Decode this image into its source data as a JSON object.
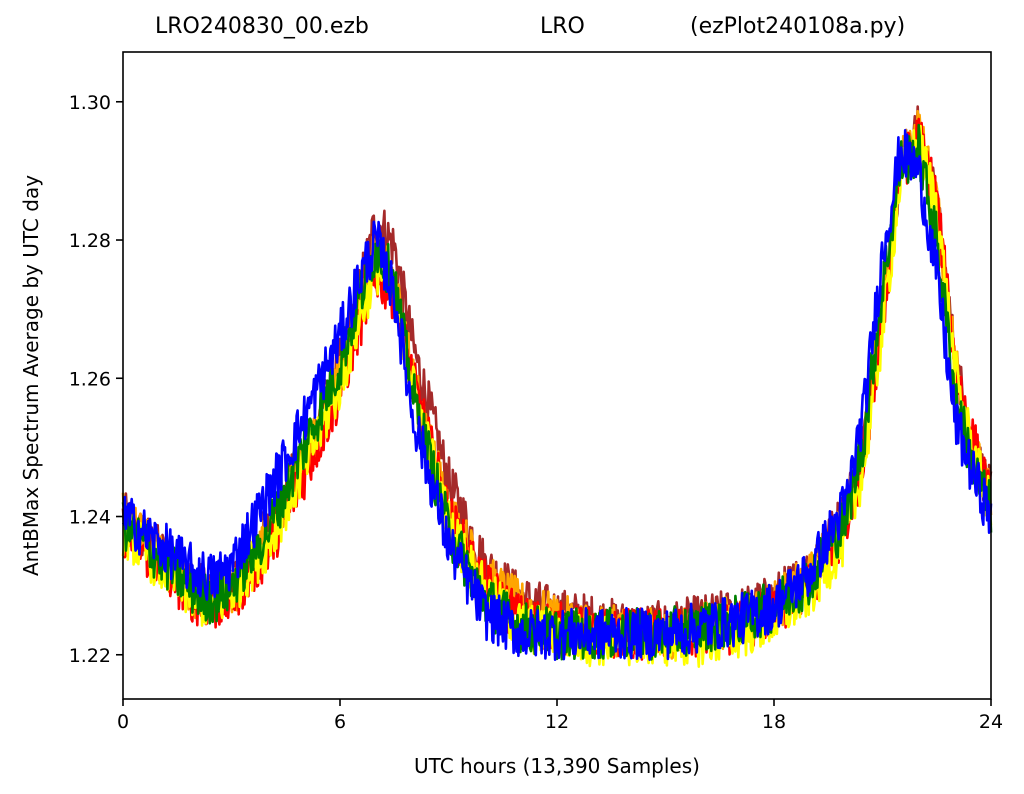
{
  "title": {
    "left": "LRO240830_00.ezb",
    "center": "LRO",
    "right": "(ezPlot240108a.py)"
  },
  "chart_data": {
    "type": "line",
    "xlabel": "UTC hours  (13,390 Samples)",
    "ylabel": "AntBMax Spectrum Average by UTC day",
    "xlim": [
      0,
      24
    ],
    "ylim": [
      1.2136,
      1.3072
    ],
    "xticks": [
      0,
      6,
      12,
      18,
      24
    ],
    "xtick_labels": [
      "0",
      "6",
      "12",
      "18",
      "24"
    ],
    "yticks": [
      1.22,
      1.24,
      1.26,
      1.28,
      1.3
    ],
    "ytick_labels": [
      "1.22",
      "1.24",
      "1.26",
      "1.28",
      "1.30"
    ],
    "grid": false,
    "legend": "none",
    "x": [
      0,
      1,
      2,
      2.5,
      3,
      4,
      5,
      6,
      6.5,
      7,
      7.5,
      8,
      9,
      10,
      11,
      12,
      13,
      14,
      15,
      16,
      17,
      18,
      19,
      20,
      20.5,
      21,
      21.5,
      22,
      22.5,
      23,
      23.5,
      24
    ],
    "series": [
      {
        "color": "#a52a2a",
        "values": [
          1.24,
          1.235,
          1.23,
          1.229,
          1.23,
          1.238,
          1.249,
          1.262,
          1.272,
          1.283,
          1.279,
          1.265,
          1.245,
          1.233,
          1.228,
          1.226,
          1.225,
          1.224,
          1.224,
          1.225,
          1.226,
          1.228,
          1.232,
          1.241,
          1.252,
          1.27,
          1.291,
          1.296,
          1.285,
          1.263,
          1.25,
          1.243
        ]
      },
      {
        "color": "#ffa500",
        "values": [
          1.24,
          1.234,
          1.229,
          1.228,
          1.229,
          1.237,
          1.248,
          1.26,
          1.27,
          1.279,
          1.274,
          1.26,
          1.241,
          1.231,
          1.227,
          1.225,
          1.224,
          1.223,
          1.223,
          1.224,
          1.225,
          1.227,
          1.231,
          1.24,
          1.251,
          1.27,
          1.291,
          1.296,
          1.285,
          1.263,
          1.25,
          1.242
        ]
      },
      {
        "color": "#ff0000",
        "values": [
          1.238,
          1.233,
          1.228,
          1.227,
          1.228,
          1.235,
          1.246,
          1.258,
          1.267,
          1.275,
          1.272,
          1.26,
          1.24,
          1.23,
          1.225,
          1.224,
          1.223,
          1.223,
          1.223,
          1.223,
          1.224,
          1.226,
          1.23,
          1.238,
          1.249,
          1.268,
          1.29,
          1.295,
          1.286,
          1.262,
          1.251,
          1.242
        ]
      },
      {
        "color": "#ffff00",
        "values": [
          1.238,
          1.233,
          1.228,
          1.227,
          1.229,
          1.236,
          1.247,
          1.259,
          1.268,
          1.276,
          1.273,
          1.259,
          1.239,
          1.229,
          1.224,
          1.223,
          1.222,
          1.222,
          1.222,
          1.222,
          1.223,
          1.225,
          1.229,
          1.237,
          1.248,
          1.267,
          1.289,
          1.294,
          1.285,
          1.261,
          1.249,
          1.241
        ]
      },
      {
        "color": "#008000",
        "values": [
          1.239,
          1.234,
          1.229,
          1.228,
          1.23,
          1.238,
          1.25,
          1.262,
          1.271,
          1.279,
          1.274,
          1.258,
          1.238,
          1.228,
          1.224,
          1.223,
          1.223,
          1.223,
          1.223,
          1.224,
          1.225,
          1.227,
          1.231,
          1.24,
          1.252,
          1.273,
          1.291,
          1.293,
          1.28,
          1.258,
          1.247,
          1.241
        ]
      },
      {
        "color": "#0000ff",
        "values": [
          1.24,
          1.236,
          1.232,
          1.231,
          1.233,
          1.243,
          1.254,
          1.266,
          1.274,
          1.28,
          1.272,
          1.255,
          1.236,
          1.226,
          1.223,
          1.223,
          1.223,
          1.223,
          1.223,
          1.224,
          1.225,
          1.227,
          1.232,
          1.242,
          1.256,
          1.278,
          1.293,
          1.29,
          1.275,
          1.254,
          1.246,
          1.24
        ]
      }
    ]
  }
}
